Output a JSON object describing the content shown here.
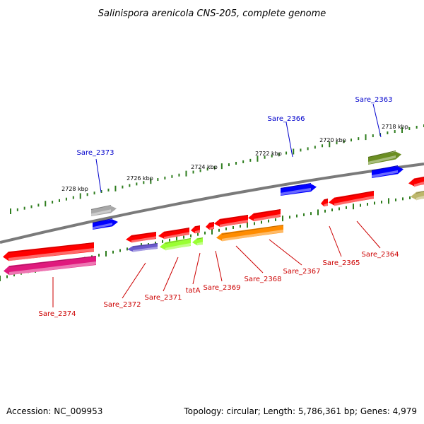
{
  "title": "Salinispora arenicola CNS-205, complete genome",
  "footer": {
    "accession": "Accession: NC_009953",
    "summary": "Topology: circular; Length: 5,786,361 bp; Genes: 4,979"
  },
  "colors": {
    "backbone": "#7a7a7a",
    "tick": "#2e7d1e",
    "label_forward": "#0000cc",
    "label_reverse": "#cc0000"
  },
  "kbp_labels": [
    "2728 kbp",
    "2726 kbp",
    "2724 kbp",
    "2722 kbp",
    "2720 kbp",
    "2718 kbp"
  ],
  "genes": [
    {
      "name": "Sare_2374",
      "strand": "reverse",
      "color": "#ff0000"
    },
    {
      "name": "Sare_2374",
      "strand": "reverse",
      "color": "#e0197d"
    },
    {
      "name": "Sare_2373",
      "strand": "forward",
      "color": "#a8a8a8"
    },
    {
      "name": "Sare_2373",
      "strand": "forward",
      "color": "#0000ff"
    },
    {
      "name": "Sare_2372",
      "strand": "reverse",
      "color": "#ff0000"
    },
    {
      "name": "Sare_2372",
      "strand": "reverse",
      "color": "#6a5acd"
    },
    {
      "name": "Sare_2371",
      "strand": "reverse",
      "color": "#ff0000"
    },
    {
      "name": "Sare_2371",
      "strand": "reverse",
      "color": "#9aff33"
    },
    {
      "name": "tatA",
      "strand": "reverse",
      "color": "#ff0000"
    },
    {
      "name": "tatA",
      "strand": "reverse",
      "color": "#9aff33"
    },
    {
      "name": "Sare_2369",
      "strand": "reverse",
      "color": "#ff0000"
    },
    {
      "name": "Sare_2368",
      "strand": "reverse",
      "color": "#ff0000"
    },
    {
      "name": "Sare_2368",
      "strand": "reverse",
      "color": "#ff8c00"
    },
    {
      "name": "Sare_2367",
      "strand": "reverse",
      "color": "#ff0000"
    },
    {
      "name": "Sare_2366",
      "strand": "forward",
      "color": "#0000ff"
    },
    {
      "name": "Sare_2365",
      "strand": "reverse",
      "color": "#ff0000"
    },
    {
      "name": "Sare_2364",
      "strand": "reverse",
      "color": "#ff0000"
    },
    {
      "name": "Sare_2363",
      "strand": "forward",
      "color": "#6b8e23"
    },
    {
      "name": "Sare_2363",
      "strand": "forward",
      "color": "#0000ff"
    },
    {
      "name": "",
      "strand": "reverse",
      "color": "#ff0000"
    },
    {
      "name": "",
      "strand": "reverse",
      "color": "#bdb76b"
    }
  ],
  "labels": [
    {
      "text": "Sare_2373",
      "strand": "forward"
    },
    {
      "text": "Sare_2366",
      "strand": "forward"
    },
    {
      "text": "Sare_2363",
      "strand": "forward"
    },
    {
      "text": "Sare_2374",
      "strand": "reverse"
    },
    {
      "text": "Sare_2372",
      "strand": "reverse"
    },
    {
      "text": "Sare_2371",
      "strand": "reverse"
    },
    {
      "text": "tatA",
      "strand": "reverse"
    },
    {
      "text": "Sare_2369",
      "strand": "reverse"
    },
    {
      "text": "Sare_2368",
      "strand": "reverse"
    },
    {
      "text": "Sare_2367",
      "strand": "reverse"
    },
    {
      "text": "Sare_2365",
      "strand": "reverse"
    },
    {
      "text": "Sare_2364",
      "strand": "reverse"
    }
  ]
}
